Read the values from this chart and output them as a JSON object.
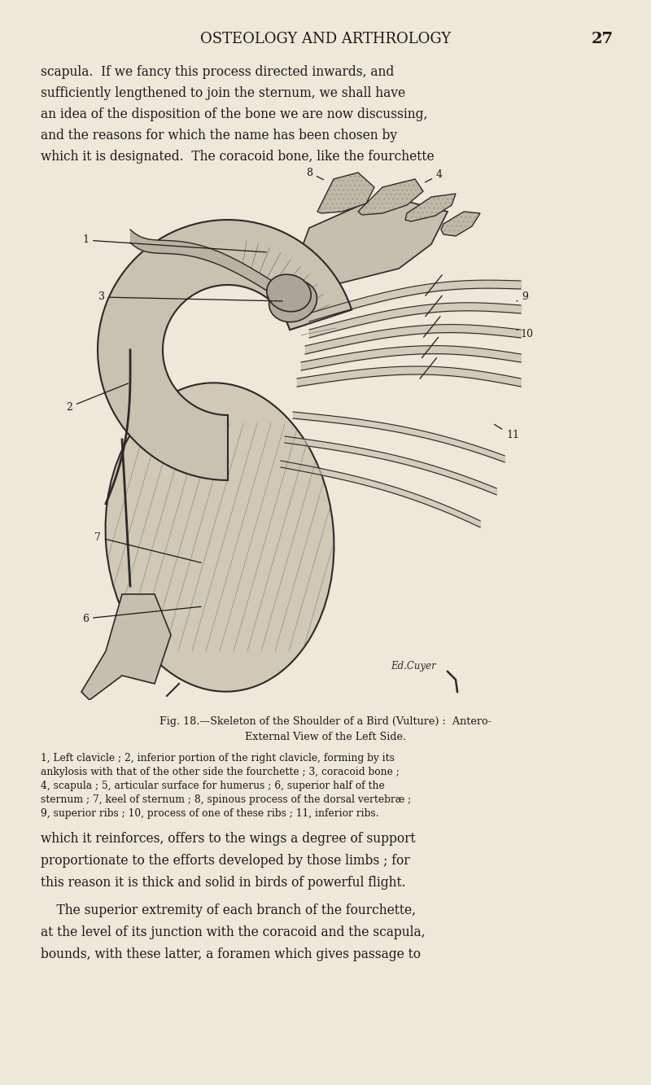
{
  "background_color": "#ede8d8",
  "page_width": 8.0,
  "page_height": 13.33,
  "dpi": 100,
  "header_text": "OSTEOLOGY AND ARTHROLOGY",
  "page_number": "27",
  "top_paragraph": "scapula.  If we fancy this process directed inwards, and\nsufficiently lengthened to join the sternum, we shall have\nan idea of the disposition of the bone we are now discussing,\nand the reasons for which the name has been chosen by\nwhich it is designated.  The coracoid bone, like the fourchette",
  "fig_caption_line1": "Fig. 18.—Skeleton of the Shoulder of a Bird (Vulture) :  Antero-",
  "fig_caption_line2": "External View of the Left Side.",
  "fig_legend": "1, Left clavicle ; 2, inferior portion of the right clavicle, forming by its ankylosis with that of the other side the fourchette ; 3, coracoid bone ; 4, scapula ; 5, articular surface for humerus ; 6, superior half of the sternum ; 7, keel of sternum ; 8, spinous process of the dorsal vertebræ ; 9, superior ribs ; 10, process of one of these ribs ; 11, inferior ribs.",
  "bottom_paragraph1": "which it reinforces, offers to the wings a degree of support\nproportionate to the efforts developed by those limbs ; for\nthis reason it is thick and solid in birds of powerful flight.",
  "bottom_paragraph2": "    The superior extremity of each branch of the fourchette,\nat the level of its junction with the coracoid and the scapula,\nbounds, with these latter, a foramen which gives passage to",
  "header_fontsize": 13,
  "body_fontsize": 11.2,
  "caption_fontsize": 9.2,
  "legend_fontsize": 8.8,
  "text_color": "#1a1a1a"
}
